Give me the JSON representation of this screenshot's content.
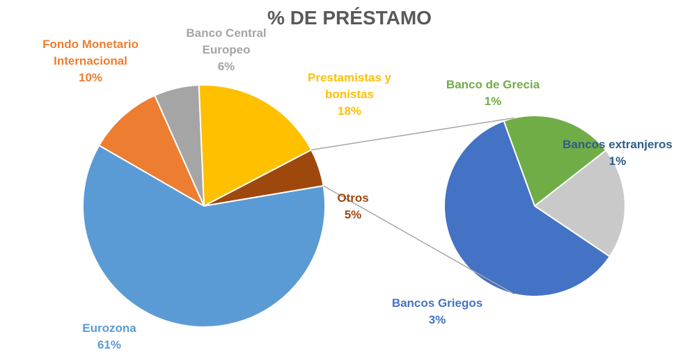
{
  "chart_data": {
    "type": "pie",
    "title": "% DE PRÉSTAMO",
    "main_pie": {
      "slices": [
        {
          "label": "Fondo Monetario Internacional",
          "label_lines": [
            "Fondo Monetario",
            "Internacional"
          ],
          "value": 10,
          "value_text": "10%",
          "color": "#ED7D31"
        },
        {
          "label": "Banco Central Europeo",
          "label_lines": [
            "Banco Central",
            "Europeo"
          ],
          "value": 6,
          "value_text": "6%",
          "color": "#A5A5A5"
        },
        {
          "label": "Prestamistas y bonistas",
          "label_lines": [
            "Prestamistas y",
            "bonistas"
          ],
          "value": 18,
          "value_text": "18%",
          "color": "#FFC000"
        },
        {
          "label": "Otros",
          "label_lines": [
            "Otros"
          ],
          "value": 5,
          "value_text": "5%",
          "color": "#9E480E"
        },
        {
          "label": "Eurozona",
          "label_lines": [
            "Eurozona"
          ],
          "value": 61,
          "value_text": "61%",
          "color": "#5B9BD5"
        }
      ]
    },
    "sub_pie": {
      "breakdown_of": "Otros",
      "slices": [
        {
          "label": "Banco de Grecia",
          "label_lines": [
            "Banco de Grecia"
          ],
          "value": 1,
          "value_text": "1%",
          "color": "#70AD47"
        },
        {
          "label": "Bancos extranjeros",
          "label_lines": [
            "Bancos extranjeros"
          ],
          "value": 1,
          "value_text": "1%",
          "color": "#C9C9C9"
        },
        {
          "label": "Bancos Griegos",
          "label_lines": [
            "Bancos Griegos"
          ],
          "value": 3,
          "value_text": "3%",
          "color": "#4472C4"
        }
      ]
    },
    "legend": "none"
  }
}
